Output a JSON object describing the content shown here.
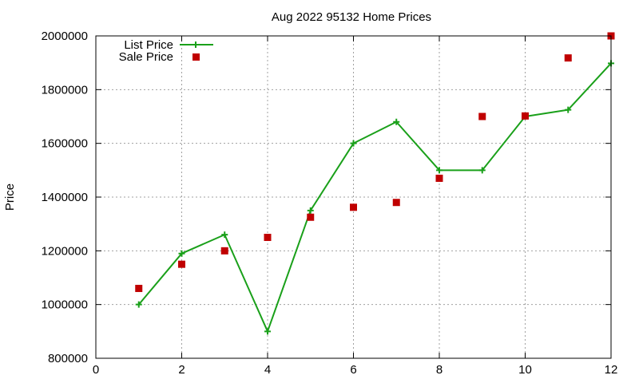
{
  "chart_data": {
    "type": "line",
    "title": "Aug 2022 95132 Home Prices",
    "xlabel": "",
    "ylabel": "Price",
    "xlim": [
      0,
      12
    ],
    "ylim": [
      800000,
      2000000
    ],
    "xticks": [
      0,
      2,
      4,
      6,
      8,
      10,
      12
    ],
    "yticks": [
      800000,
      1000000,
      1200000,
      1400000,
      1600000,
      1800000,
      2000000
    ],
    "grid": true,
    "legend_position": "top-left",
    "series": [
      {
        "name": "List Price",
        "style": "linespoints",
        "color": "#1aa01a",
        "x": [
          1,
          2,
          3,
          4,
          5,
          6,
          7,
          8,
          9,
          10,
          11,
          12
        ],
        "values": [
          1000000,
          1190000,
          1260000,
          900000,
          1350000,
          1600000,
          1680000,
          1500000,
          1500000,
          1700000,
          1725000,
          1898000
        ]
      },
      {
        "name": "Sale Price",
        "style": "points",
        "color": "#c00000",
        "x": [
          1,
          2,
          3,
          4,
          5,
          6,
          7,
          8,
          9,
          10,
          11,
          12
        ],
        "values": [
          1060000,
          1150000,
          1200000,
          1250000,
          1325000,
          1362000,
          1380000,
          1470000,
          1700000,
          1702000,
          1918000,
          2000000
        ]
      }
    ]
  }
}
